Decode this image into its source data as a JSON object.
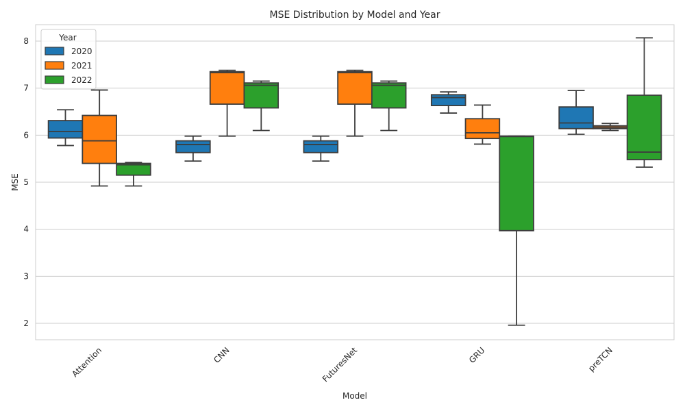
{
  "chart_data": {
    "type": "box",
    "title": "MSE Distribution by Model and Year",
    "xlabel": "Model",
    "ylabel": "MSE",
    "ylim": [
      1.65,
      8.35
    ],
    "yticks": [
      2,
      3,
      4,
      5,
      6,
      7,
      8
    ],
    "categories": [
      "Attention",
      "CNN",
      "FuturesNet",
      "GRU",
      "preTCN"
    ],
    "grid": "horizontal",
    "legend": {
      "title": "Year",
      "position": "upper-left"
    },
    "series": [
      {
        "name": "2020",
        "color": "#1f77b4",
        "boxes": [
          {
            "whisker_low": 5.78,
            "q1": 5.94,
            "median": 6.08,
            "q3": 6.31,
            "whisker_high": 6.54
          },
          {
            "whisker_low": 5.45,
            "q1": 5.63,
            "median": 5.8,
            "q3": 5.88,
            "whisker_high": 5.98
          },
          {
            "whisker_low": 5.45,
            "q1": 5.63,
            "median": 5.8,
            "q3": 5.88,
            "whisker_high": 5.98
          },
          {
            "whisker_low": 6.47,
            "q1": 6.63,
            "median": 6.8,
            "q3": 6.86,
            "whisker_high": 6.92
          },
          {
            "whisker_low": 6.02,
            "q1": 6.14,
            "median": 6.26,
            "q3": 6.6,
            "whisker_high": 6.95
          }
        ]
      },
      {
        "name": "2021",
        "color": "#ff7f0e",
        "boxes": [
          {
            "whisker_low": 4.92,
            "q1": 5.4,
            "median": 5.88,
            "q3": 6.42,
            "whisker_high": 6.96
          },
          {
            "whisker_low": 5.98,
            "q1": 6.66,
            "median": 7.33,
            "q3": 7.35,
            "whisker_high": 7.38
          },
          {
            "whisker_low": 5.98,
            "q1": 6.66,
            "median": 7.33,
            "q3": 7.35,
            "whisker_high": 7.38
          },
          {
            "whisker_low": 5.81,
            "q1": 5.93,
            "median": 6.05,
            "q3": 6.35,
            "whisker_high": 6.64
          },
          {
            "whisker_low": 6.1,
            "q1": 6.14,
            "median": 6.17,
            "q3": 6.2,
            "whisker_high": 6.25
          }
        ]
      },
      {
        "name": "2022",
        "color": "#2ca02c",
        "boxes": [
          {
            "whisker_low": 4.92,
            "q1": 5.15,
            "median": 5.37,
            "q3": 5.4,
            "whisker_high": 5.42
          },
          {
            "whisker_low": 6.1,
            "q1": 6.58,
            "median": 7.06,
            "q3": 7.11,
            "whisker_high": 7.15
          },
          {
            "whisker_low": 6.1,
            "q1": 6.58,
            "median": 7.06,
            "q3": 7.11,
            "whisker_high": 7.15
          },
          {
            "whisker_low": 1.96,
            "q1": 3.97,
            "median": 5.97,
            "q3": 5.98,
            "whisker_high": 5.98
          },
          {
            "whisker_low": 5.32,
            "q1": 5.48,
            "median": 5.64,
            "q3": 6.85,
            "whisker_high": 8.07
          }
        ]
      }
    ]
  }
}
